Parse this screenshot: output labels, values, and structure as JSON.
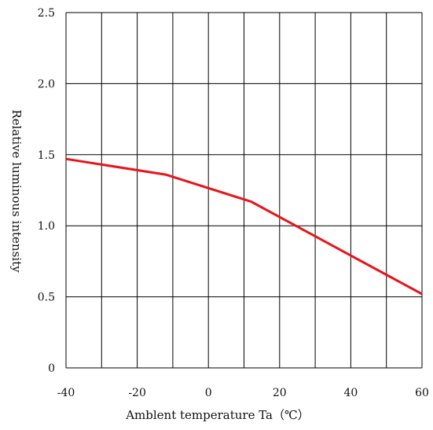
{
  "chart_data": {
    "type": "line",
    "title": "",
    "xlabel": "Amblent temperature Ta（℃）",
    "ylabel": "Relative luminous intensity",
    "xlim": [
      -40,
      60
    ],
    "ylim": [
      0,
      2.5
    ],
    "x_tick_labels": [
      "-40",
      "-20",
      "0",
      "20",
      "40",
      "60"
    ],
    "x_tick_values": [
      -40,
      -20,
      0,
      20,
      40,
      60
    ],
    "y_tick_labels": [
      "0",
      "0.5",
      "1.0",
      "1.5",
      "2.0",
      "2.5"
    ],
    "y_tick_values": [
      0,
      0.5,
      1.0,
      1.5,
      2.0,
      2.5
    ],
    "grid": true,
    "legend": "none",
    "series": [
      {
        "color": "#e8141b",
        "x": [
          -40,
          -12,
          12,
          60
        ],
        "y": [
          1.47,
          1.36,
          1.17,
          0.52
        ]
      }
    ]
  }
}
